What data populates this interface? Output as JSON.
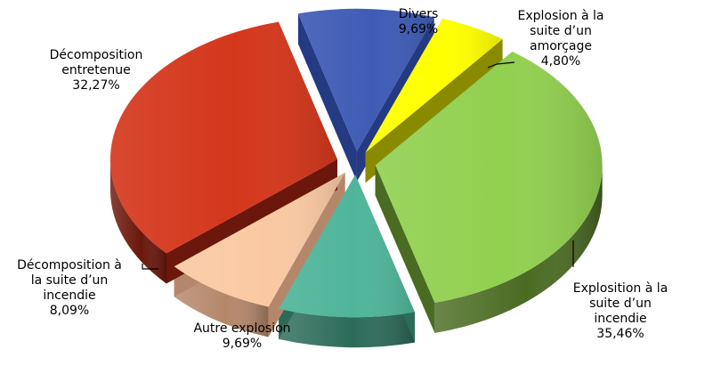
{
  "chart_data": {
    "type": "pie",
    "style": "3d-exploded",
    "slices": [
      {
        "label_lines": [
          "Divers",
          "9,69%"
        ],
        "name": "Divers",
        "value": 9.69,
        "color": "#3f5bb5",
        "side_color": "#243a82"
      },
      {
        "label_lines": [
          "Explosion à la",
          "suite d’un",
          "amorçage",
          "4,80%"
        ],
        "name": "Explosion à la suite d’un amorçage",
        "value": 4.8,
        "color": "#ffff00",
        "side_color": "#8a8a00"
      },
      {
        "label_lines": [
          "Explosition à la",
          "suite d’un",
          "incendie",
          "35,46%"
        ],
        "name": "Explosition à la suite d’un incendie",
        "value": 35.46,
        "color": "#92d050",
        "side_color": "#4a6b22"
      },
      {
        "label_lines": [
          "Autre explosion",
          "9,69%"
        ],
        "name": "Autre explosion",
        "value": 9.69,
        "color": "#4fb59a",
        "side_color": "#2c6b59"
      },
      {
        "label_lines": [
          "Décomposition à",
          "la suite d’un",
          "incendie",
          "8,09%"
        ],
        "name": "Décomposition à la suite d’un incendie",
        "value": 8.09,
        "color": "#fac9a3",
        "side_color": "#b5876a"
      },
      {
        "label_lines": [
          "Décomposition",
          "entretenue",
          "32,27%"
        ],
        "name": "Décomposition entretenue",
        "value": 32.27,
        "color": "#d4371c",
        "side_color": "#6b170b"
      }
    ]
  }
}
